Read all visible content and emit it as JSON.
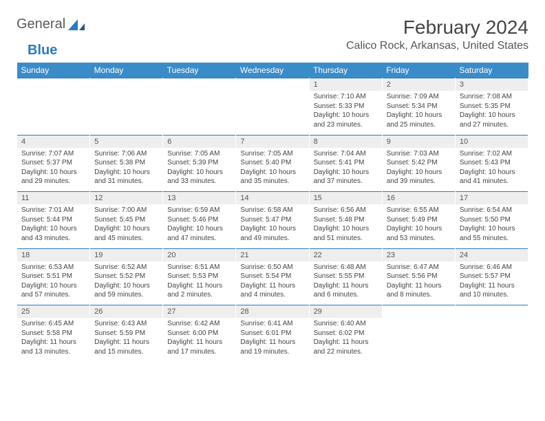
{
  "logo": {
    "word1": "General",
    "word2": "Blue"
  },
  "title": "February 2024",
  "location": "Calico Rock, Arkansas, United States",
  "colors": {
    "header_bg": "#3a8cc9",
    "header_text": "#ffffff",
    "daynum_bg": "#eeeeee",
    "row_border": "#2b7bbf",
    "body_text": "#444444",
    "logo_gray": "#5a5a5a",
    "logo_blue": "#2b7bbf"
  },
  "weekdays": [
    "Sunday",
    "Monday",
    "Tuesday",
    "Wednesday",
    "Thursday",
    "Friday",
    "Saturday"
  ],
  "weeks": [
    {
      "nums": [
        "",
        "",
        "",
        "",
        "1",
        "2",
        "3"
      ],
      "cells": [
        null,
        null,
        null,
        null,
        {
          "sunrise": "Sunrise: 7:10 AM",
          "sunset": "Sunset: 5:33 PM",
          "day1": "Daylight: 10 hours",
          "day2": "and 23 minutes."
        },
        {
          "sunrise": "Sunrise: 7:09 AM",
          "sunset": "Sunset: 5:34 PM",
          "day1": "Daylight: 10 hours",
          "day2": "and 25 minutes."
        },
        {
          "sunrise": "Sunrise: 7:08 AM",
          "sunset": "Sunset: 5:35 PM",
          "day1": "Daylight: 10 hours",
          "day2": "and 27 minutes."
        }
      ]
    },
    {
      "nums": [
        "4",
        "5",
        "6",
        "7",
        "8",
        "9",
        "10"
      ],
      "cells": [
        {
          "sunrise": "Sunrise: 7:07 AM",
          "sunset": "Sunset: 5:37 PM",
          "day1": "Daylight: 10 hours",
          "day2": "and 29 minutes."
        },
        {
          "sunrise": "Sunrise: 7:06 AM",
          "sunset": "Sunset: 5:38 PM",
          "day1": "Daylight: 10 hours",
          "day2": "and 31 minutes."
        },
        {
          "sunrise": "Sunrise: 7:05 AM",
          "sunset": "Sunset: 5:39 PM",
          "day1": "Daylight: 10 hours",
          "day2": "and 33 minutes."
        },
        {
          "sunrise": "Sunrise: 7:05 AM",
          "sunset": "Sunset: 5:40 PM",
          "day1": "Daylight: 10 hours",
          "day2": "and 35 minutes."
        },
        {
          "sunrise": "Sunrise: 7:04 AM",
          "sunset": "Sunset: 5:41 PM",
          "day1": "Daylight: 10 hours",
          "day2": "and 37 minutes."
        },
        {
          "sunrise": "Sunrise: 7:03 AM",
          "sunset": "Sunset: 5:42 PM",
          "day1": "Daylight: 10 hours",
          "day2": "and 39 minutes."
        },
        {
          "sunrise": "Sunrise: 7:02 AM",
          "sunset": "Sunset: 5:43 PM",
          "day1": "Daylight: 10 hours",
          "day2": "and 41 minutes."
        }
      ]
    },
    {
      "nums": [
        "11",
        "12",
        "13",
        "14",
        "15",
        "16",
        "17"
      ],
      "cells": [
        {
          "sunrise": "Sunrise: 7:01 AM",
          "sunset": "Sunset: 5:44 PM",
          "day1": "Daylight: 10 hours",
          "day2": "and 43 minutes."
        },
        {
          "sunrise": "Sunrise: 7:00 AM",
          "sunset": "Sunset: 5:45 PM",
          "day1": "Daylight: 10 hours",
          "day2": "and 45 minutes."
        },
        {
          "sunrise": "Sunrise: 6:59 AM",
          "sunset": "Sunset: 5:46 PM",
          "day1": "Daylight: 10 hours",
          "day2": "and 47 minutes."
        },
        {
          "sunrise": "Sunrise: 6:58 AM",
          "sunset": "Sunset: 5:47 PM",
          "day1": "Daylight: 10 hours",
          "day2": "and 49 minutes."
        },
        {
          "sunrise": "Sunrise: 6:56 AM",
          "sunset": "Sunset: 5:48 PM",
          "day1": "Daylight: 10 hours",
          "day2": "and 51 minutes."
        },
        {
          "sunrise": "Sunrise: 6:55 AM",
          "sunset": "Sunset: 5:49 PM",
          "day1": "Daylight: 10 hours",
          "day2": "and 53 minutes."
        },
        {
          "sunrise": "Sunrise: 6:54 AM",
          "sunset": "Sunset: 5:50 PM",
          "day1": "Daylight: 10 hours",
          "day2": "and 55 minutes."
        }
      ]
    },
    {
      "nums": [
        "18",
        "19",
        "20",
        "21",
        "22",
        "23",
        "24"
      ],
      "cells": [
        {
          "sunrise": "Sunrise: 6:53 AM",
          "sunset": "Sunset: 5:51 PM",
          "day1": "Daylight: 10 hours",
          "day2": "and 57 minutes."
        },
        {
          "sunrise": "Sunrise: 6:52 AM",
          "sunset": "Sunset: 5:52 PM",
          "day1": "Daylight: 10 hours",
          "day2": "and 59 minutes."
        },
        {
          "sunrise": "Sunrise: 6:51 AM",
          "sunset": "Sunset: 5:53 PM",
          "day1": "Daylight: 11 hours",
          "day2": "and 2 minutes."
        },
        {
          "sunrise": "Sunrise: 6:50 AM",
          "sunset": "Sunset: 5:54 PM",
          "day1": "Daylight: 11 hours",
          "day2": "and 4 minutes."
        },
        {
          "sunrise": "Sunrise: 6:48 AM",
          "sunset": "Sunset: 5:55 PM",
          "day1": "Daylight: 11 hours",
          "day2": "and 6 minutes."
        },
        {
          "sunrise": "Sunrise: 6:47 AM",
          "sunset": "Sunset: 5:56 PM",
          "day1": "Daylight: 11 hours",
          "day2": "and 8 minutes."
        },
        {
          "sunrise": "Sunrise: 6:46 AM",
          "sunset": "Sunset: 5:57 PM",
          "day1": "Daylight: 11 hours",
          "day2": "and 10 minutes."
        }
      ]
    },
    {
      "nums": [
        "25",
        "26",
        "27",
        "28",
        "29",
        "",
        ""
      ],
      "cells": [
        {
          "sunrise": "Sunrise: 6:45 AM",
          "sunset": "Sunset: 5:58 PM",
          "day1": "Daylight: 11 hours",
          "day2": "and 13 minutes."
        },
        {
          "sunrise": "Sunrise: 6:43 AM",
          "sunset": "Sunset: 5:59 PM",
          "day1": "Daylight: 11 hours",
          "day2": "and 15 minutes."
        },
        {
          "sunrise": "Sunrise: 6:42 AM",
          "sunset": "Sunset: 6:00 PM",
          "day1": "Daylight: 11 hours",
          "day2": "and 17 minutes."
        },
        {
          "sunrise": "Sunrise: 6:41 AM",
          "sunset": "Sunset: 6:01 PM",
          "day1": "Daylight: 11 hours",
          "day2": "and 19 minutes."
        },
        {
          "sunrise": "Sunrise: 6:40 AM",
          "sunset": "Sunset: 6:02 PM",
          "day1": "Daylight: 11 hours",
          "day2": "and 22 minutes."
        },
        null,
        null
      ]
    }
  ]
}
